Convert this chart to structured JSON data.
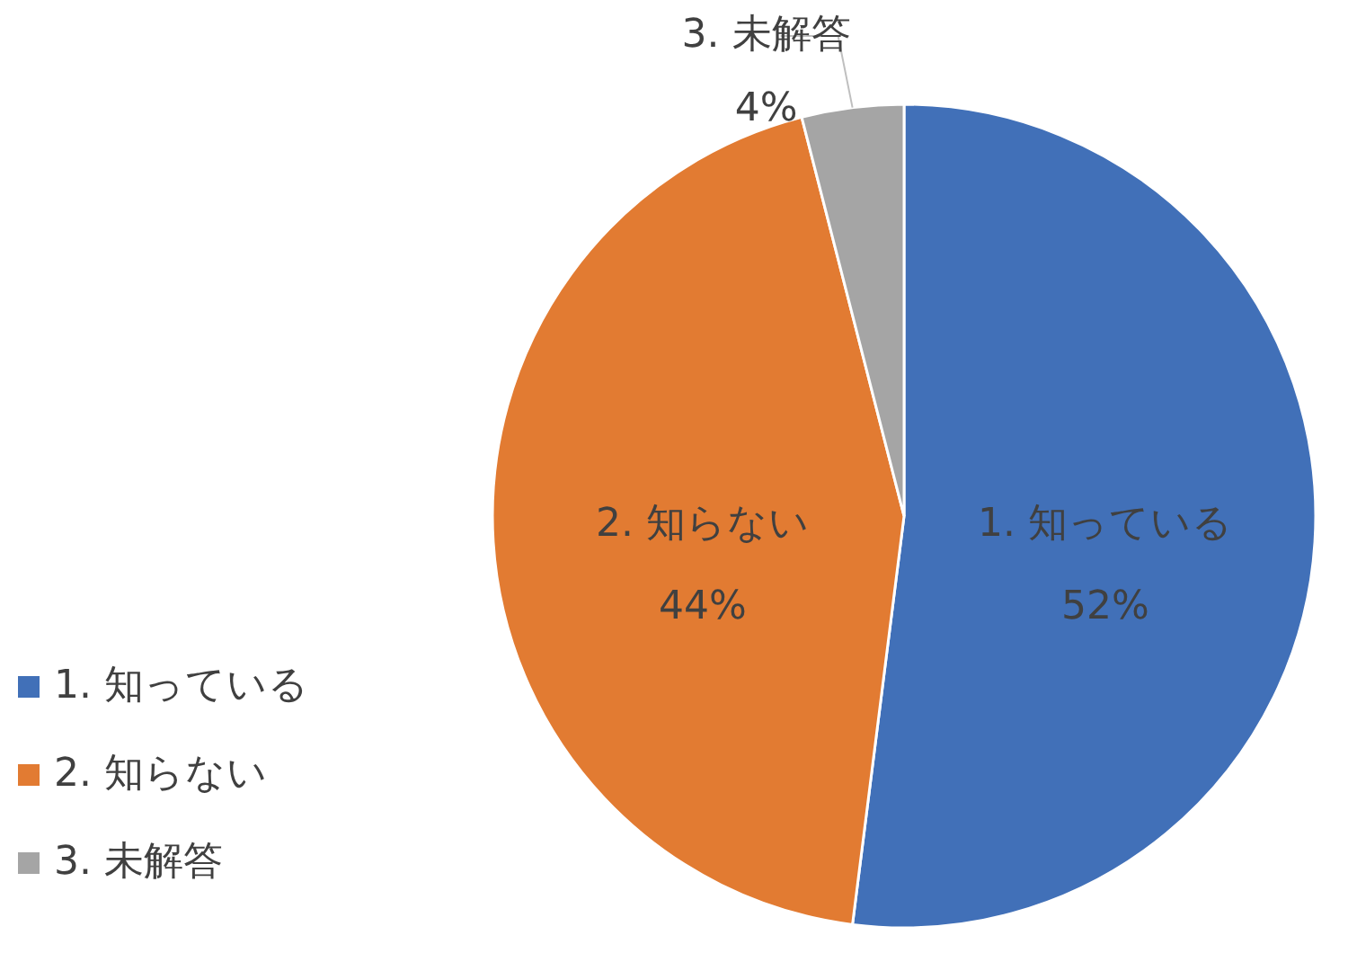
{
  "chart_data": {
    "type": "pie",
    "categories": [
      "1. 知っている",
      "2. 知らない",
      "3. 未解答"
    ],
    "values": [
      52,
      44,
      4
    ],
    "colors": [
      "#4170b8",
      "#e27b32",
      "#a5a5a5"
    ],
    "value_labels": [
      "52%",
      "44%",
      "4%"
    ],
    "legend": "bottom left"
  }
}
